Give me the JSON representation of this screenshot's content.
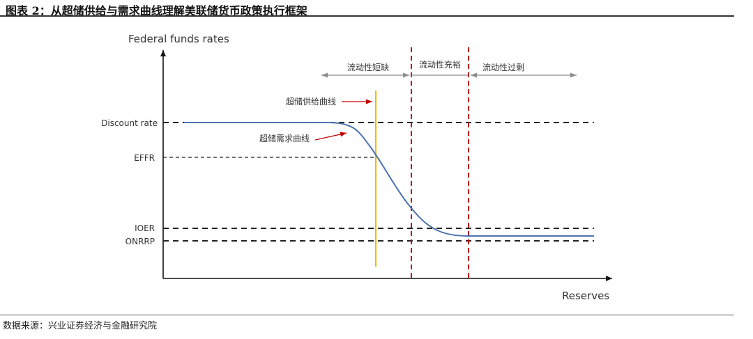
{
  "title": "图表 2：从超储供给与需求曲线理解美联储货币政策执行框架",
  "source": "数据来源：兴业证券经济与金融研究院",
  "diagram": {
    "y_axis_label": "Federal funds rates",
    "x_axis_label": "Reserves",
    "rate_levels": {
      "discount": "Discount rate",
      "effr": "EFFR",
      "ioer": "IOER",
      "onrrp": "ONRRP"
    },
    "regimes": {
      "scarce": "流动性短缺",
      "ample": "流动性充裕",
      "abundant": "流动性过剩"
    },
    "annotations": {
      "supply_curve": "超储供给曲线",
      "demand_curve": "超储需求曲线"
    },
    "colors": {
      "demand_curve": "#4a72b0",
      "supply_curve": "#f0b800",
      "regime_boundary": "#c00000",
      "annotation_arrow": "#c00000",
      "reference_line": "#222222",
      "regime_arrow": "#8c8c8c"
    }
  }
}
